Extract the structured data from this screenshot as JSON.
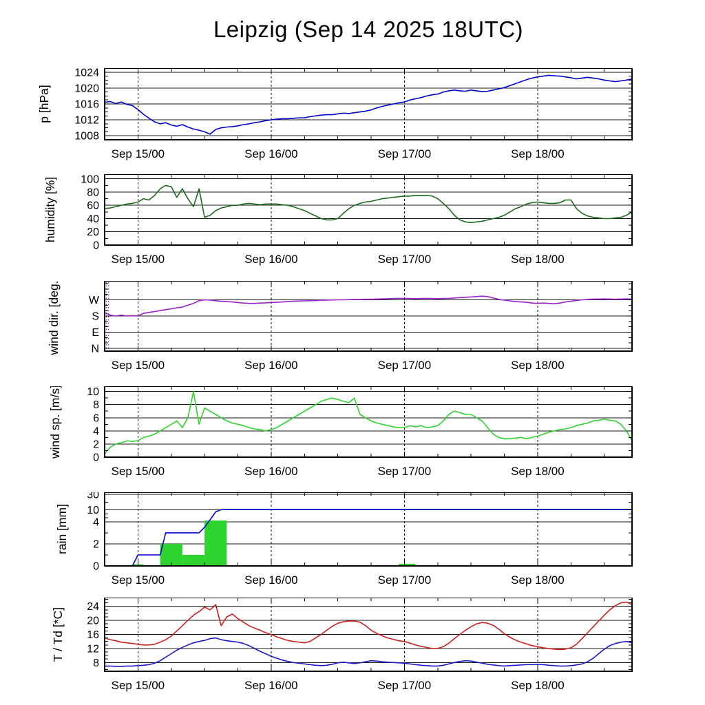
{
  "title": "Leipzig (Sep 14 2025 18UTC)",
  "x_axis": {
    "start": "Sep 14 18:00",
    "hours_total": 95,
    "minor_tick_hours": 6,
    "day_ticks": [
      {
        "label": "Sep 15/00",
        "hour": 6
      },
      {
        "label": "Sep 16/00",
        "hour": 30
      },
      {
        "label": "Sep 17/00",
        "hour": 54
      },
      {
        "label": "Sep 18/00",
        "hour": 78
      }
    ]
  },
  "chart_data": [
    {
      "id": "pressure",
      "type": "line",
      "ylabel": "p [hPa]",
      "ylim": [
        1007,
        1025
      ],
      "yticks": [
        1008,
        1012,
        1016,
        1020,
        1024
      ],
      "minor_step": 1,
      "series": [
        {
          "name": "pressure",
          "color": "#0000cd",
          "values": [
            1016.4,
            1016.6,
            1016.1,
            1016.5,
            1015.9,
            1015.6,
            1014.6,
            1013.4,
            1012.4,
            1011.5,
            1011.0,
            1011.3,
            1010.7,
            1010.4,
            1010.8,
            1010.2,
            1009.7,
            1009.4,
            1009.0,
            1008.4,
            1009.6,
            1010.0,
            1010.2,
            1010.3,
            1010.5,
            1010.8,
            1011.0,
            1011.3,
            1011.5,
            1011.8,
            1012.0,
            1012.2,
            1012.3,
            1012.3,
            1012.4,
            1012.5,
            1012.5,
            1012.8,
            1013.0,
            1013.2,
            1013.3,
            1013.3,
            1013.5,
            1013.7,
            1013.6,
            1013.8,
            1014.0,
            1014.2,
            1014.5,
            1015.0,
            1015.4,
            1015.7,
            1016.0,
            1016.3,
            1016.5,
            1017.0,
            1017.3,
            1017.6,
            1018.0,
            1018.3,
            1018.5,
            1019.0,
            1019.3,
            1019.5,
            1019.3,
            1019.2,
            1019.5,
            1019.3,
            1019.1,
            1019.2,
            1019.5,
            1019.8,
            1020.1,
            1020.6,
            1021.1,
            1021.6,
            1022.1,
            1022.5,
            1022.8,
            1023.0,
            1023.2,
            1023.1,
            1023.0,
            1022.8,
            1022.6,
            1022.3,
            1022.5,
            1022.7,
            1022.5,
            1022.3,
            1022.0,
            1021.8,
            1021.6,
            1021.8,
            1022.0,
            1022.3
          ]
        }
      ]
    },
    {
      "id": "humidity",
      "type": "line",
      "ylabel": "humidity [%]",
      "ylim": [
        0,
        107
      ],
      "yticks": [
        0,
        20,
        40,
        60,
        80,
        100
      ],
      "minor_step": 10,
      "series": [
        {
          "name": "humidity",
          "color": "#1b6b1b",
          "values": [
            55,
            56,
            58,
            60,
            62,
            63,
            65,
            70,
            68,
            75,
            85,
            90,
            88,
            72,
            85,
            70,
            58,
            85,
            42,
            45,
            52,
            56,
            58,
            60,
            60,
            62,
            63,
            62,
            61,
            62,
            62,
            62,
            61,
            60,
            58,
            55,
            52,
            48,
            44,
            40,
            38,
            38,
            40,
            48,
            55,
            60,
            63,
            65,
            66,
            68,
            70,
            71,
            72,
            73,
            74,
            74,
            75,
            75,
            75,
            74,
            70,
            63,
            55,
            45,
            38,
            35,
            34,
            35,
            36,
            38,
            40,
            42,
            45,
            50,
            55,
            58,
            62,
            64,
            65,
            64,
            63,
            63,
            64,
            68,
            68,
            55,
            48,
            44,
            42,
            41,
            40,
            40,
            41,
            42,
            45,
            50
          ]
        }
      ]
    },
    {
      "id": "wind-direction",
      "type": "line",
      "ylabel": "wind dir. [deg.]",
      "ylim": [
        -15,
        375
      ],
      "yticks": [
        0,
        90,
        180,
        270
      ],
      "ytick_labels": [
        "N",
        "E",
        "S",
        "W"
      ],
      "minor_step": 30,
      "noise_columns": [
        0.3,
        0.7
      ],
      "series": [
        {
          "name": "wind-direction",
          "color": "#9920cc",
          "values": [
            200,
            185,
            180,
            185,
            180,
            182,
            180,
            195,
            200,
            205,
            210,
            215,
            220,
            225,
            230,
            240,
            250,
            265,
            270,
            268,
            265,
            262,
            260,
            258,
            255,
            252,
            250,
            250,
            252,
            253,
            255,
            256,
            258,
            260,
            262,
            263,
            264,
            265,
            266,
            267,
            268,
            269,
            270,
            270,
            271,
            272,
            272,
            273,
            273,
            274,
            275,
            276,
            277,
            278,
            278,
            277,
            276,
            277,
            278,
            277,
            276,
            277,
            278,
            280,
            282,
            284,
            286,
            288,
            290,
            288,
            280,
            272,
            268,
            264,
            260,
            258,
            256,
            252,
            250,
            252,
            250,
            248,
            252,
            258,
            262,
            266,
            270,
            272,
            274,
            274,
            275,
            274,
            273,
            274,
            275,
            274
          ]
        }
      ]
    },
    {
      "id": "wind-speed",
      "type": "line",
      "ylabel": "wind sp. [m/s]",
      "ylim": [
        0,
        10.8
      ],
      "yticks": [
        0,
        2,
        4,
        6,
        8,
        10
      ],
      "minor_step": 1,
      "series": [
        {
          "name": "wind-speed",
          "color": "#2ed42e",
          "values": [
            0.5,
            1.5,
            2.0,
            2.2,
            2.5,
            2.4,
            2.5,
            3.0,
            3.2,
            3.5,
            4.0,
            4.5,
            5.0,
            5.5,
            4.5,
            6.0,
            10.0,
            5.0,
            7.5,
            7.0,
            6.5,
            6.0,
            5.5,
            5.2,
            5.0,
            4.8,
            4.5,
            4.3,
            4.2,
            4.0,
            4.2,
            4.5,
            5.0,
            5.5,
            6.0,
            6.5,
            7.0,
            7.5,
            8.0,
            8.5,
            8.8,
            9.0,
            8.8,
            8.5,
            8.3,
            9.0,
            6.5,
            6.0,
            5.5,
            5.2,
            5.0,
            4.8,
            4.6,
            4.5,
            4.5,
            4.8,
            4.6,
            4.8,
            4.5,
            4.6,
            4.8,
            5.5,
            6.5,
            7.0,
            6.8,
            6.5,
            6.5,
            6.0,
            5.5,
            4.5,
            3.5,
            3.0,
            2.8,
            2.8,
            2.9,
            3.0,
            2.8,
            3.0,
            3.2,
            3.5,
            3.8,
            4.0,
            4.2,
            4.3,
            4.5,
            4.8,
            5.0,
            5.2,
            5.5,
            5.6,
            5.8,
            5.6,
            5.5,
            5.0,
            4.0,
            2.5
          ]
        }
      ]
    },
    {
      "id": "rain",
      "type": "bar+line",
      "ylabel": "rain [mm]",
      "yticks": [
        0,
        2,
        4,
        10,
        30
      ],
      "minor_values": [
        1,
        3,
        6,
        8,
        20
      ],
      "yscale": {
        "values": [
          0,
          2,
          4,
          10,
          30,
          60
        ],
        "fractions": [
          0,
          0.3,
          0.6,
          0.76,
          0.97,
          1.0
        ]
      },
      "bars": {
        "name": "rain-interval",
        "color": "#2ed42e",
        "data": [
          [
            5,
            2,
            0.15
          ],
          [
            10,
            4,
            2.0
          ],
          [
            14,
            4,
            1.0
          ],
          [
            18,
            4,
            4.6
          ],
          [
            53,
            3,
            0.2
          ],
          [
            82,
            3,
            0.05
          ]
        ]
      },
      "series": [
        {
          "name": "rain-cumulative",
          "color": "#0000cd",
          "values": [
            0,
            0,
            0,
            0,
            0,
            0,
            1.0,
            1.0,
            1.0,
            1.0,
            1.0,
            3.0,
            3.0,
            3.0,
            3.0,
            3.0,
            3.0,
            3.0,
            3.5,
            5.0,
            9.0,
            10.3,
            10.5,
            10.5,
            10.5,
            10.5,
            10.5,
            10.5,
            10.5,
            10.5,
            10.5,
            10.5,
            10.5,
            10.5,
            10.5,
            10.5,
            10.5,
            10.5,
            10.5,
            10.5,
            10.5,
            10.5,
            10.5,
            10.5,
            10.5,
            10.5,
            10.5,
            10.5,
            10.5,
            10.5,
            10.5,
            10.5,
            10.5,
            10.5,
            10.7,
            10.7,
            10.7,
            10.7,
            10.7,
            10.7,
            10.7,
            10.7,
            10.7,
            10.7,
            10.7,
            10.7,
            10.7,
            10.7,
            10.7,
            10.7,
            10.7,
            10.7,
            10.7,
            10.7,
            10.7,
            10.7,
            10.7,
            10.7,
            10.7,
            10.7,
            10.7,
            10.7,
            10.7,
            10.7,
            10.7,
            10.7,
            10.7,
            10.7,
            10.7,
            10.7,
            10.7,
            10.7,
            10.7,
            10.7,
            10.7,
            10.7
          ]
        }
      ]
    },
    {
      "id": "temperature",
      "type": "line",
      "ylabel": "T / Td [*C]",
      "ylim": [
        5.5,
        26.5
      ],
      "yticks": [
        8,
        12,
        16,
        20,
        24
      ],
      "minor_step": 1,
      "series": [
        {
          "name": "temperature",
          "color": "#cc1f1f",
          "values": [
            15.0,
            14.5,
            14.2,
            13.8,
            13.6,
            13.4,
            13.2,
            13.0,
            13.0,
            13.2,
            13.8,
            14.5,
            15.5,
            17.0,
            18.5,
            20.0,
            21.5,
            22.5,
            23.8,
            23.0,
            24.5,
            18.5,
            21.0,
            21.8,
            20.5,
            19.5,
            18.5,
            17.8,
            17.2,
            16.5,
            16.0,
            15.3,
            14.8,
            14.3,
            14.0,
            13.8,
            13.6,
            14.0,
            15.0,
            16.0,
            17.2,
            18.3,
            19.2,
            19.6,
            19.8,
            19.8,
            19.5,
            18.5,
            17.2,
            16.3,
            15.6,
            15.0,
            14.6,
            14.2,
            14.0,
            13.5,
            13.0,
            12.6,
            12.3,
            12.0,
            12.0,
            12.5,
            13.5,
            14.8,
            16.0,
            17.2,
            18.2,
            19.0,
            19.4,
            19.2,
            18.6,
            17.5,
            16.2,
            15.2,
            14.4,
            13.8,
            13.3,
            12.8,
            12.5,
            12.2,
            12.0,
            11.8,
            11.7,
            11.8,
            12.2,
            13.2,
            14.8,
            16.5,
            18.2,
            19.8,
            21.5,
            23.0,
            24.2,
            25.0,
            25.2,
            24.5
          ]
        },
        {
          "name": "dewpoint",
          "color": "#1a1acc",
          "values": [
            7.0,
            7.0,
            6.9,
            6.9,
            7.0,
            7.0,
            7.1,
            7.2,
            7.4,
            7.8,
            8.5,
            9.5,
            10.5,
            11.5,
            12.3,
            13.0,
            13.6,
            14.0,
            14.3,
            14.8,
            15.0,
            14.5,
            14.2,
            14.0,
            13.8,
            13.4,
            12.8,
            12.0,
            11.2,
            10.5,
            9.8,
            9.2,
            8.7,
            8.3,
            8.0,
            7.8,
            7.6,
            7.4,
            7.2,
            7.1,
            7.2,
            7.5,
            7.9,
            8.1,
            7.9,
            7.7,
            7.9,
            8.2,
            8.5,
            8.4,
            8.2,
            8.1,
            8.0,
            7.9,
            7.8,
            7.6,
            7.4,
            7.2,
            7.1,
            7.0,
            7.0,
            7.2,
            7.6,
            8.0,
            8.3,
            8.5,
            8.4,
            8.1,
            7.8,
            7.5,
            7.3,
            7.1,
            7.0,
            7.1,
            7.2,
            7.3,
            7.4,
            7.4,
            7.5,
            7.4,
            7.2,
            7.1,
            7.0,
            7.0,
            7.1,
            7.3,
            7.6,
            8.2,
            9.2,
            10.5,
            11.8,
            12.8,
            13.4,
            13.8,
            14.0,
            13.6
          ]
        }
      ]
    }
  ]
}
